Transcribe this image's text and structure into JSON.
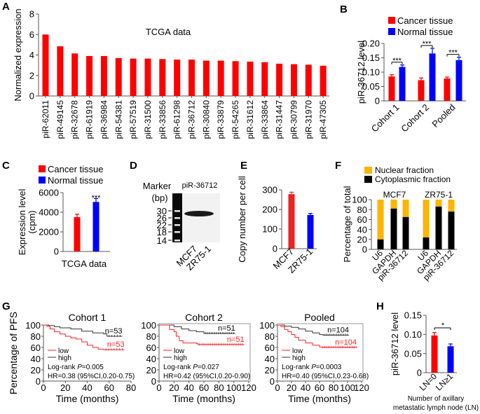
{
  "colors": {
    "cancer": "#ff0000",
    "normal": "#0000ff",
    "nuclear": "#ffb400",
    "cytoplasmic": "#000000",
    "high": "#333333",
    "low": "#ff2020",
    "copy_mcf7": "#ee2222",
    "axis": "#555555"
  },
  "chart_data": [
    {
      "panel": "A",
      "type": "bar",
      "title": "TCGA data",
      "xlabel": "",
      "ylabel": "Normalized expression",
      "ylim": [
        0,
        8
      ],
      "yticks": [
        "0",
        "2",
        "4",
        "6",
        "8"
      ],
      "categories": [
        "piR-62011",
        "piR-49145",
        "piR-32678",
        "piR-61919",
        "piR-36984",
        "piR-54381",
        "piR-57519",
        "piR-31500",
        "piR-33856",
        "piR-61298",
        "piR-36712",
        "piR-30840",
        "piR-33879",
        "piR-54265",
        "piR-31612",
        "piR-33864",
        "piR-31447",
        "piR-30799",
        "piR-31970",
        "piR-47305"
      ],
      "values": [
        6.0,
        4.85,
        4.15,
        3.9,
        3.9,
        3.7,
        3.65,
        3.65,
        3.6,
        3.55,
        3.55,
        3.45,
        3.45,
        3.4,
        3.35,
        3.3,
        3.15,
        3.1,
        3.05,
        2.95
      ]
    },
    {
      "panel": "B",
      "type": "bar",
      "ylabel": "piR-36712 level",
      "ylim": [
        0,
        0.2
      ],
      "yticks": [
        "0",
        "0.05",
        "0.10",
        "0.15",
        "0.20"
      ],
      "categories": [
        "Cohort 1",
        "Cohort 2",
        "Pooled"
      ],
      "series": [
        {
          "name": "Cancer tissue",
          "values": [
            0.085,
            0.072,
            0.078
          ],
          "errors": [
            0.006,
            0.008,
            0.005
          ]
        },
        {
          "name": "Normal tissue",
          "values": [
            0.118,
            0.165,
            0.142
          ],
          "errors": [
            0.007,
            0.018,
            0.01
          ]
        }
      ],
      "significance": [
        "***",
        "***",
        "***"
      ]
    },
    {
      "panel": "C",
      "type": "bar",
      "xlabel": "TCGA data",
      "ylabel": [
        "Expression level",
        "(cpm)"
      ],
      "ylim": [
        0,
        6000
      ],
      "yticks": [
        "0",
        "2000",
        "4000",
        "6000"
      ],
      "series": [
        {
          "name": "Cancer tissue",
          "values": [
            3500
          ],
          "errors": [
            300
          ]
        },
        {
          "name": "Normal tissue",
          "values": [
            5050
          ],
          "errors": [
            350
          ]
        }
      ],
      "significance": "***"
    },
    {
      "panel": "D",
      "type": "image",
      "marker_label": "Marker",
      "unit_label": "(bp)",
      "probe_label": "piR-36712",
      "ladder": [
        "30",
        "26",
        "22",
        "18",
        "14"
      ],
      "lanes": [
        "MCF7",
        "ZR75-1"
      ]
    },
    {
      "panel": "E",
      "type": "bar",
      "ylabel": "Copy number per cell",
      "ylim": [
        0,
        300
      ],
      "yticks": [
        "0",
        "100",
        "200",
        "300"
      ],
      "categories": [
        "MCF7",
        "ZR75-1"
      ],
      "values": [
        278,
        172
      ],
      "errors": [
        10,
        8
      ]
    },
    {
      "panel": "F",
      "type": "bar",
      "stacked": true,
      "ylabel": "Percentage of total",
      "ylim": [
        0,
        100
      ],
      "yticks": [
        "0",
        "20",
        "40",
        "60",
        "80",
        "100"
      ],
      "groups": [
        "MCF7",
        "ZR75-1"
      ],
      "categories": [
        "U6",
        "GAPDH",
        "piR-36712",
        "U6",
        "GAPDH",
        "piR-36712"
      ],
      "series": [
        {
          "name": "Nuclear fraction",
          "values": [
            80,
            18,
            35,
            76,
            14,
            24
          ]
        },
        {
          "name": "Cytoplasmic fraction",
          "values": [
            20,
            82,
            65,
            24,
            86,
            76
          ]
        }
      ]
    },
    {
      "panel": "G",
      "type": "line",
      "subtype": "kaplan-meier",
      "ylabel": "Percentage of PFS",
      "plots": [
        {
          "title": "Cohort 1",
          "xlabel": "Time (months)",
          "xlim": [
            0,
            80
          ],
          "xticks": [
            "0",
            "20",
            "40",
            "60",
            "80"
          ],
          "ylim": [
            0,
            100
          ],
          "yticks": [
            "0",
            "20",
            "40",
            "60",
            "80",
            "100"
          ],
          "n_high": "n=53",
          "n_low": "n=53",
          "stat": "Log-rank P=0.005",
          "stat_prefix": "Log-rank ",
          "stat_p": "P",
          "stat_val": "=0.005",
          "hr": "HR=0.38 (95%CI,0.20-0.75)",
          "high": [
            [
              0,
              100
            ],
            [
              5,
              99
            ],
            [
              10,
              97
            ],
            [
              15,
              95
            ],
            [
              25,
              93
            ],
            [
              35,
              89
            ],
            [
              45,
              86
            ],
            [
              55,
              84
            ],
            [
              58,
              80
            ],
            [
              72,
              80
            ]
          ],
          "low": [
            [
              0,
              100
            ],
            [
              3,
              98
            ],
            [
              6,
              93
            ],
            [
              10,
              88
            ],
            [
              15,
              84
            ],
            [
              20,
              80
            ],
            [
              25,
              77
            ],
            [
              30,
              75
            ],
            [
              35,
              70
            ],
            [
              40,
              64
            ],
            [
              45,
              60
            ],
            [
              50,
              57
            ],
            [
              55,
              56
            ],
            [
              74,
              56
            ]
          ]
        },
        {
          "title": "Cohort 2",
          "xlabel": "Time (months)",
          "xlim": [
            0,
            120
          ],
          "xticks": [
            "0",
            "20",
            "40",
            "60",
            "80",
            "100",
            "120"
          ],
          "ylim": [
            0,
            100
          ],
          "yticks": [
            "0",
            "20",
            "40",
            "60",
            "80",
            "100"
          ],
          "n_high": "n=51",
          "n_low": "n=51",
          "stat_prefix": "Log-rank ",
          "stat_p": "P",
          "stat_val": "=0.027",
          "hr": "HR=0.42 (95%CI,0.20-0.90)",
          "high": [
            [
              0,
              100
            ],
            [
              12,
              100
            ],
            [
              20,
              97
            ],
            [
              30,
              93
            ],
            [
              40,
              90
            ],
            [
              50,
              88
            ],
            [
              60,
              85
            ],
            [
              102,
              85
            ]
          ],
          "low": [
            [
              0,
              100
            ],
            [
              12,
              100
            ],
            [
              14,
              92
            ],
            [
              20,
              88
            ],
            [
              23,
              80
            ],
            [
              27,
              72
            ],
            [
              32,
              68
            ],
            [
              50,
              67
            ],
            [
              52,
              65
            ],
            [
              114,
              65
            ]
          ]
        },
        {
          "title": "Pooled",
          "xlabel": "Time (months)",
          "xlim": [
            0,
            120
          ],
          "xticks": [
            "0",
            "20",
            "40",
            "60",
            "80",
            "100",
            "120"
          ],
          "ylim": [
            0,
            100
          ],
          "yticks": [
            "0",
            "20",
            "40",
            "60",
            "80",
            "100"
          ],
          "n_high": "n=104",
          "n_low": "n=104",
          "stat_prefix": "Log-rank ",
          "stat_p": "P",
          "stat_val": "=0.0003",
          "hr": "HR=0.40 (95%CI,0.23-0.68)",
          "high": [
            [
              0,
              100
            ],
            [
              10,
              98
            ],
            [
              20,
              96
            ],
            [
              30,
              93
            ],
            [
              40,
              89
            ],
            [
              50,
              86
            ],
            [
              60,
              83
            ],
            [
              65,
              82
            ],
            [
              102,
              82
            ]
          ],
          "low": [
            [
              0,
              100
            ],
            [
              5,
              97
            ],
            [
              10,
              92
            ],
            [
              15,
              88
            ],
            [
              20,
              83
            ],
            [
              25,
              78
            ],
            [
              30,
              73
            ],
            [
              40,
              68
            ],
            [
              50,
              64
            ],
            [
              60,
              61
            ],
            [
              63,
              60
            ],
            [
              113,
              60
            ]
          ]
        }
      ],
      "legend": [
        "low",
        "high"
      ]
    },
    {
      "panel": "H",
      "type": "bar",
      "ylabel": "piR-36712 level",
      "xlabel": [
        "Number of axillary",
        "metastatic lymph node (LN)"
      ],
      "ylim": [
        0,
        0.15
      ],
      "yticks": [
        "0",
        "0.05",
        "0.10",
        "0.15"
      ],
      "categories": [
        "LN=0",
        "LN≥1"
      ],
      "values": [
        0.097,
        0.069
      ],
      "errors": [
        0.008,
        0.006
      ],
      "significance": "*"
    }
  ]
}
